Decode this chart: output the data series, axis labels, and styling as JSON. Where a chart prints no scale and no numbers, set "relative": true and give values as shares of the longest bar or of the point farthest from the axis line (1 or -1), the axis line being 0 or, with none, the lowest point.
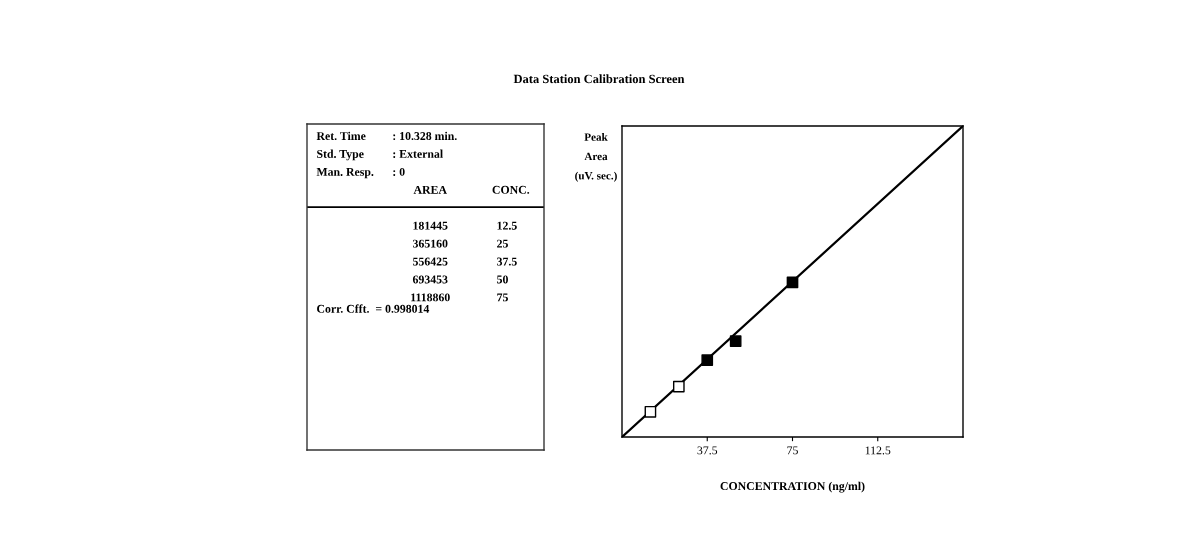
{
  "chart_data": [
    {
      "type": "other",
      "title": "Data Station Calibration Screen",
      "annotations": [
        "Ret. Time",
        ": 10.328 min.",
        "Std. Type",
        ": External",
        "Man. Resp.",
        ": 0",
        "AREA",
        "CONC.",
        "181445",
        "12.5",
        "365160",
        "25",
        "556425",
        "37.5",
        "693453",
        "50",
        "1118860",
        "75",
        "Corr. Cfft.  = 0.998014"
      ]
    },
    {
      "type": "scatter",
      "xlabel": "CONCENTRATION (ng/ml)",
      "ylabel": "Peak\nArea\n(uV. sec.)",
      "relative": true,
      "series": [
        {
          "type": "scatter",
          "x": [
            12.5,
            25,
            37.5,
            50,
            75
          ],
          "values": [
            0.081,
            0.162,
            0.247,
            0.308,
            0.497
          ],
          "colors": [
            "#ffffff",
            "#ffffff",
            "#000000",
            "#000000",
            "#000000"
          ],
          "marker": "square"
        },
        {
          "type": "line",
          "x": [
            0,
            150
          ],
          "values": [
            0,
            1
          ],
          "color": "#000000"
        }
      ],
      "legend": false,
      "grid": false,
      "xlim": [
        0,
        150
      ],
      "xticks": [
        37.5,
        75,
        112.5
      ],
      "tick_labels": "x"
    }
  ]
}
